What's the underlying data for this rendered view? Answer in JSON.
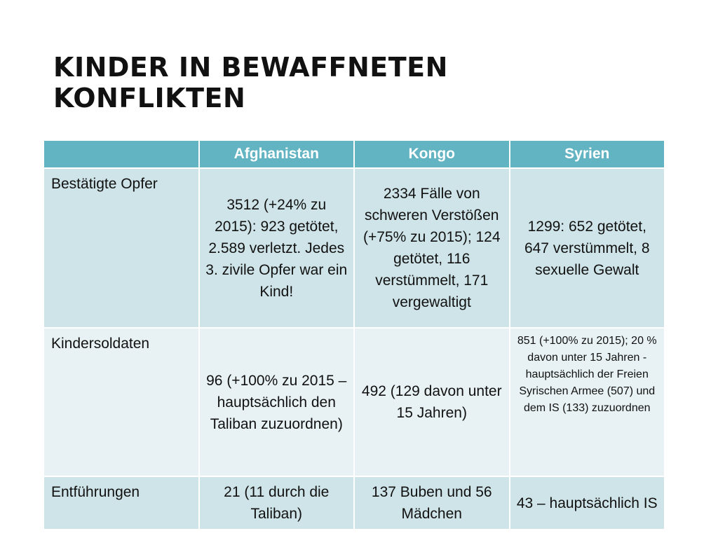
{
  "slide": {
    "title_lines": [
      "KINDER IN BEWAFFNETEN",
      "KONFLIKTEN"
    ]
  },
  "table": {
    "headers": [
      "",
      "Afghanistan",
      "Kongo",
      "Syrien"
    ],
    "rows": [
      {
        "label": "Bestätigte Opfer",
        "cells": [
          "3512 (+24% zu 2015): 923 getötet, 2.589 verletzt. Jedes 3. zivile Opfer war ein Kind!",
          "2334 Fälle von schweren Verstößen (+75% zu 2015); 124 getötet, 116 verstümmelt, 171 vergewaltigt",
          "1299: 652 getötet, 647 verstümmelt, 8 sexuelle Gewalt"
        ]
      },
      {
        "label": "Kindersoldaten",
        "cells": [
          "96 (+100% zu 2015 – hauptsächlich den Taliban zuzuordnen)",
          "492 (129 davon unter 15 Jahren)",
          "851 (+100% zu 2015); 20 % davon unter 15 Jahren - hauptsächlich der Freien Syrischen Armee (507) und dem IS (133) zuzuordnen"
        ]
      },
      {
        "label": "Entführungen",
        "cells": [
          "21 (11 durch die Taliban)",
          "137 Buben und 56 Mädchen",
          "43 – hauptsächlich IS"
        ]
      }
    ]
  },
  "colors": {
    "header_bg": "#63b4c3",
    "row_dark_bg": "#cfe4e8",
    "row_light_bg": "#e8f2f4",
    "title_text": "#111111"
  }
}
